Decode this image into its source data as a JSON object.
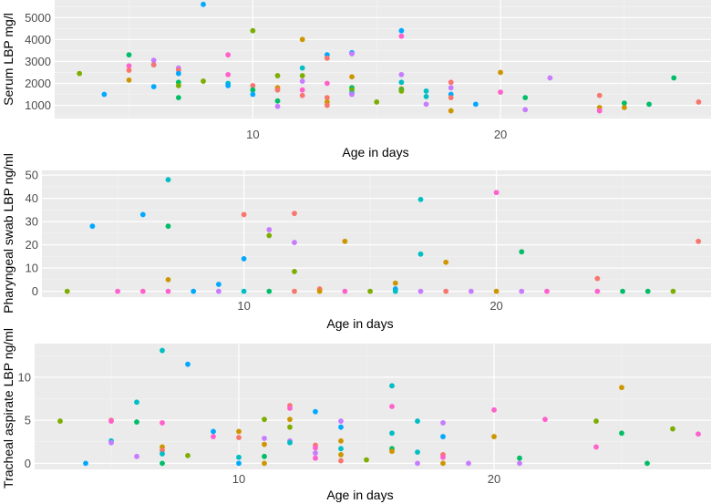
{
  "chart_data": [
    {
      "type": "scatter",
      "xlabel": "Age in days",
      "ylabel": "Serum LBP mg/l",
      "xlim": [
        2,
        28.5
      ],
      "ylim": [
        400,
        5800
      ],
      "xticks": [
        10,
        20
      ],
      "yticks": [
        1000,
        2000,
        3000,
        4000,
        5000
      ],
      "grid": true,
      "legend": "none",
      "points": [
        {
          "x": 3,
          "y": 2450,
          "c": "#7CAE00"
        },
        {
          "x": 4,
          "y": 1500,
          "c": "#00A9FF"
        },
        {
          "x": 5,
          "y": 2800,
          "c": "#FF61CC"
        },
        {
          "x": 5,
          "y": 2600,
          "c": "#F8766D"
        },
        {
          "x": 5,
          "y": 3300,
          "c": "#00BE67"
        },
        {
          "x": 5,
          "y": 2150,
          "c": "#CD9600"
        },
        {
          "x": 6,
          "y": 3050,
          "c": "#C77CFF"
        },
        {
          "x": 6,
          "y": 2850,
          "c": "#00A9FF"
        },
        {
          "x": 6,
          "y": 1850,
          "c": "#00A9FF"
        },
        {
          "x": 6,
          "y": 2850,
          "c": "#F8766D"
        },
        {
          "x": 7,
          "y": 2700,
          "c": "#C77CFF"
        },
        {
          "x": 7,
          "y": 2600,
          "c": "#F8766D"
        },
        {
          "x": 7,
          "y": 2450,
          "c": "#00A9FF"
        },
        {
          "x": 7,
          "y": 2050,
          "c": "#00BE67"
        },
        {
          "x": 7,
          "y": 1900,
          "c": "#7CAE00"
        },
        {
          "x": 7,
          "y": 1350,
          "c": "#00BE67"
        },
        {
          "x": 8,
          "y": 5600,
          "c": "#00A9FF"
        },
        {
          "x": 8,
          "y": 2100,
          "c": "#7CAE00"
        },
        {
          "x": 9,
          "y": 3300,
          "c": "#FF61CC"
        },
        {
          "x": 9,
          "y": 2400,
          "c": "#FF61CC"
        },
        {
          "x": 9,
          "y": 2000,
          "c": "#00BFC4"
        },
        {
          "x": 9,
          "y": 1900,
          "c": "#00A9FF"
        },
        {
          "x": 10,
          "y": 4400,
          "c": "#7CAE00"
        },
        {
          "x": 10,
          "y": 1900,
          "c": "#F8766D"
        },
        {
          "x": 10,
          "y": 1700,
          "c": "#00BE67"
        },
        {
          "x": 10,
          "y": 1500,
          "c": "#00A9FF"
        },
        {
          "x": 11,
          "y": 2350,
          "c": "#7CAE00"
        },
        {
          "x": 11,
          "y": 1800,
          "c": "#CD9600"
        },
        {
          "x": 11,
          "y": 1700,
          "c": "#F8766D"
        },
        {
          "x": 11,
          "y": 1200,
          "c": "#00BE67"
        },
        {
          "x": 11,
          "y": 950,
          "c": "#C77CFF"
        },
        {
          "x": 12,
          "y": 4000,
          "c": "#CD9600"
        },
        {
          "x": 12,
          "y": 2700,
          "c": "#00BFC4"
        },
        {
          "x": 12,
          "y": 2350,
          "c": "#7CAE00"
        },
        {
          "x": 12,
          "y": 2100,
          "c": "#C77CFF"
        },
        {
          "x": 12,
          "y": 1700,
          "c": "#FF61CC"
        },
        {
          "x": 12,
          "y": 1450,
          "c": "#F8766D"
        },
        {
          "x": 13,
          "y": 3300,
          "c": "#00A9FF"
        },
        {
          "x": 13,
          "y": 3150,
          "c": "#F8766D"
        },
        {
          "x": 13,
          "y": 2000,
          "c": "#FF61CC"
        },
        {
          "x": 13,
          "y": 1350,
          "c": "#F8766D"
        },
        {
          "x": 13,
          "y": 1150,
          "c": "#CD9600"
        },
        {
          "x": 13,
          "y": 1000,
          "c": "#F8766D"
        },
        {
          "x": 14,
          "y": 3400,
          "c": "#00A9FF"
        },
        {
          "x": 14,
          "y": 3350,
          "c": "#C77CFF"
        },
        {
          "x": 14,
          "y": 2300,
          "c": "#CD9600"
        },
        {
          "x": 14,
          "y": 1800,
          "c": "#00BE67"
        },
        {
          "x": 14,
          "y": 1700,
          "c": "#7CAE00"
        },
        {
          "x": 14,
          "y": 1550,
          "c": "#00BFC4"
        },
        {
          "x": 14,
          "y": 1500,
          "c": "#C77CFF"
        },
        {
          "x": 15,
          "y": 1150,
          "c": "#7CAE00"
        },
        {
          "x": 16,
          "y": 4400,
          "c": "#00A9FF"
        },
        {
          "x": 16,
          "y": 4150,
          "c": "#FF61CC"
        },
        {
          "x": 16,
          "y": 2400,
          "c": "#C77CFF"
        },
        {
          "x": 16,
          "y": 2050,
          "c": "#00BFC4"
        },
        {
          "x": 16,
          "y": 1750,
          "c": "#CD9600"
        },
        {
          "x": 16,
          "y": 1700,
          "c": "#00BE67"
        },
        {
          "x": 16,
          "y": 1650,
          "c": "#7CAE00"
        },
        {
          "x": 17,
          "y": 1650,
          "c": "#00BFC4"
        },
        {
          "x": 17,
          "y": 1400,
          "c": "#00BFC4"
        },
        {
          "x": 17,
          "y": 1050,
          "c": "#C77CFF"
        },
        {
          "x": 18,
          "y": 2050,
          "c": "#F8766D"
        },
        {
          "x": 18,
          "y": 1800,
          "c": "#C77CFF"
        },
        {
          "x": 18,
          "y": 1500,
          "c": "#00A9FF"
        },
        {
          "x": 18,
          "y": 1350,
          "c": "#F8766D"
        },
        {
          "x": 18,
          "y": 750,
          "c": "#CD9600"
        },
        {
          "x": 19,
          "y": 1050,
          "c": "#00A9FF"
        },
        {
          "x": 20,
          "y": 2500,
          "c": "#CD9600"
        },
        {
          "x": 20,
          "y": 1600,
          "c": "#FF61CC"
        },
        {
          "x": 21,
          "y": 1350,
          "c": "#00BE67"
        },
        {
          "x": 21,
          "y": 800,
          "c": "#C77CFF"
        },
        {
          "x": 22,
          "y": 2250,
          "c": "#C77CFF"
        },
        {
          "x": 24,
          "y": 1450,
          "c": "#F8766D"
        },
        {
          "x": 24,
          "y": 900,
          "c": "#CD9600"
        },
        {
          "x": 24,
          "y": 750,
          "c": "#FF61CC"
        },
        {
          "x": 25,
          "y": 1100,
          "c": "#00BE67"
        },
        {
          "x": 25,
          "y": 900,
          "c": "#CD9600"
        },
        {
          "x": 26,
          "y": 1050,
          "c": "#00BE67"
        },
        {
          "x": 27,
          "y": 2250,
          "c": "#00BE67"
        },
        {
          "x": 28,
          "y": 1150,
          "c": "#F8766D"
        }
      ]
    },
    {
      "type": "scatter",
      "xlabel": "Age in days",
      "ylabel": "Pharyngeal swab LBP ng/ml",
      "xlim": [
        2,
        28.5
      ],
      "ylim": [
        -2.5,
        52
      ],
      "xticks": [
        10,
        20
      ],
      "yticks": [
        0,
        10,
        20,
        30,
        40,
        50
      ],
      "grid": true,
      "legend": "none",
      "points": [
        {
          "x": 3,
          "y": 0,
          "c": "#7CAE00"
        },
        {
          "x": 4,
          "y": 28,
          "c": "#00A9FF"
        },
        {
          "x": 5,
          "y": 0,
          "c": "#FF61CC"
        },
        {
          "x": 6,
          "y": 33,
          "c": "#00A9FF"
        },
        {
          "x": 6,
          "y": 0,
          "c": "#FF61CC"
        },
        {
          "x": 7,
          "y": 48,
          "c": "#00BFC4"
        },
        {
          "x": 7,
          "y": 28,
          "c": "#00BE67"
        },
        {
          "x": 7,
          "y": 5,
          "c": "#CD9600"
        },
        {
          "x": 7,
          "y": 0,
          "c": "#FF61CC"
        },
        {
          "x": 8,
          "y": 0,
          "c": "#00A9FF"
        },
        {
          "x": 9,
          "y": 3,
          "c": "#00A9FF"
        },
        {
          "x": 9,
          "y": 0,
          "c": "#C77CFF"
        },
        {
          "x": 10,
          "y": 33,
          "c": "#F8766D"
        },
        {
          "x": 10,
          "y": 14,
          "c": "#00A9FF"
        },
        {
          "x": 10,
          "y": 0,
          "c": "#00BFC4"
        },
        {
          "x": 11,
          "y": 26.5,
          "c": "#C77CFF"
        },
        {
          "x": 11,
          "y": 24,
          "c": "#7CAE00"
        },
        {
          "x": 11,
          "y": 0,
          "c": "#00BE67"
        },
        {
          "x": 12,
          "y": 33.5,
          "c": "#F8766D"
        },
        {
          "x": 12,
          "y": 21,
          "c": "#C77CFF"
        },
        {
          "x": 12,
          "y": 8.5,
          "c": "#7CAE00"
        },
        {
          "x": 12,
          "y": 0,
          "c": "#F8766D"
        },
        {
          "x": 13,
          "y": 1,
          "c": "#F8766D"
        },
        {
          "x": 13,
          "y": 0,
          "c": "#CD9600"
        },
        {
          "x": 14,
          "y": 21.5,
          "c": "#CD9600"
        },
        {
          "x": 14,
          "y": 0,
          "c": "#FF61CC"
        },
        {
          "x": 15,
          "y": 0,
          "c": "#7CAE00"
        },
        {
          "x": 16,
          "y": 3.5,
          "c": "#CD9600"
        },
        {
          "x": 16,
          "y": 1,
          "c": "#00A9FF"
        },
        {
          "x": 16,
          "y": 0,
          "c": "#00BFC4"
        },
        {
          "x": 17,
          "y": 39.5,
          "c": "#00BFC4"
        },
        {
          "x": 17,
          "y": 16,
          "c": "#00BFC4"
        },
        {
          "x": 17,
          "y": 0,
          "c": "#C77CFF"
        },
        {
          "x": 18,
          "y": 12.5,
          "c": "#CD9600"
        },
        {
          "x": 18,
          "y": 0,
          "c": "#F8766D"
        },
        {
          "x": 19,
          "y": 0,
          "c": "#C77CFF"
        },
        {
          "x": 20,
          "y": 42.5,
          "c": "#FF61CC"
        },
        {
          "x": 20,
          "y": 0,
          "c": "#CD9600"
        },
        {
          "x": 21,
          "y": 17,
          "c": "#00BE67"
        },
        {
          "x": 21,
          "y": 0,
          "c": "#C77CFF"
        },
        {
          "x": 22,
          "y": 0,
          "c": "#FF61CC"
        },
        {
          "x": 24,
          "y": 5.5,
          "c": "#F8766D"
        },
        {
          "x": 24,
          "y": 0,
          "c": "#FF61CC"
        },
        {
          "x": 25,
          "y": 0,
          "c": "#00BE67"
        },
        {
          "x": 26,
          "y": 0,
          "c": "#00BE67"
        },
        {
          "x": 27,
          "y": 0,
          "c": "#7CAE00"
        },
        {
          "x": 28,
          "y": 21.5,
          "c": "#F8766D"
        }
      ]
    },
    {
      "type": "scatter",
      "xlabel": "Age in days",
      "ylabel": "Tracheal aspirate LBP ng/ml",
      "xlim": [
        2,
        28.5
      ],
      "ylim": [
        -0.7,
        13.9
      ],
      "xticks": [
        10,
        20
      ],
      "yticks": [
        0,
        5,
        10
      ],
      "grid": true,
      "legend": "none",
      "points": [
        {
          "x": 3,
          "y": 4.9,
          "c": "#7CAE00"
        },
        {
          "x": 4,
          "y": 0,
          "c": "#00A9FF"
        },
        {
          "x": 5,
          "y": 5,
          "c": "#F8766D"
        },
        {
          "x": 5,
          "y": 4.9,
          "c": "#FF61CC"
        },
        {
          "x": 5,
          "y": 2.6,
          "c": "#00BFC4"
        },
        {
          "x": 5,
          "y": 2.4,
          "c": "#C77CFF"
        },
        {
          "x": 6,
          "y": 7.1,
          "c": "#00BFC4"
        },
        {
          "x": 6,
          "y": 4.8,
          "c": "#00BE67"
        },
        {
          "x": 6,
          "y": 0.8,
          "c": "#C77CFF"
        },
        {
          "x": 7,
          "y": 13.1,
          "c": "#00BFC4"
        },
        {
          "x": 7,
          "y": 4.7,
          "c": "#FF61CC"
        },
        {
          "x": 7,
          "y": 1.9,
          "c": "#CD9600"
        },
        {
          "x": 7,
          "y": 1.5,
          "c": "#F8766D"
        },
        {
          "x": 7,
          "y": 1.1,
          "c": "#00BFC4"
        },
        {
          "x": 7,
          "y": 0,
          "c": "#00BE67"
        },
        {
          "x": 8,
          "y": 11.5,
          "c": "#00A9FF"
        },
        {
          "x": 8,
          "y": 0.9,
          "c": "#7CAE00"
        },
        {
          "x": 9,
          "y": 3.7,
          "c": "#00A9FF"
        },
        {
          "x": 9,
          "y": 3.1,
          "c": "#FF61CC"
        },
        {
          "x": 10,
          "y": 3.7,
          "c": "#CD9600"
        },
        {
          "x": 10,
          "y": 3,
          "c": "#F8766D"
        },
        {
          "x": 10,
          "y": 0.7,
          "c": "#00BFC4"
        },
        {
          "x": 10,
          "y": 0,
          "c": "#00A9FF"
        },
        {
          "x": 11,
          "y": 5.1,
          "c": "#7CAE00"
        },
        {
          "x": 11,
          "y": 2.9,
          "c": "#C77CFF"
        },
        {
          "x": 11,
          "y": 2.2,
          "c": "#CD9600"
        },
        {
          "x": 11,
          "y": 0.8,
          "c": "#00BE67"
        },
        {
          "x": 11,
          "y": 0,
          "c": "#CD9600"
        },
        {
          "x": 12,
          "y": 6.7,
          "c": "#F8766D"
        },
        {
          "x": 12,
          "y": 6.4,
          "c": "#FF61CC"
        },
        {
          "x": 12,
          "y": 5.1,
          "c": "#CD9600"
        },
        {
          "x": 12,
          "y": 4.2,
          "c": "#7CAE00"
        },
        {
          "x": 12,
          "y": 2.6,
          "c": "#C77CFF"
        },
        {
          "x": 12,
          "y": 2.4,
          "c": "#00BFC4"
        },
        {
          "x": 13,
          "y": 6,
          "c": "#00A9FF"
        },
        {
          "x": 13,
          "y": 2.1,
          "c": "#F8766D"
        },
        {
          "x": 13,
          "y": 1.8,
          "c": "#FF61CC"
        },
        {
          "x": 13,
          "y": 1.2,
          "c": "#C77CFF"
        },
        {
          "x": 13,
          "y": 0.6,
          "c": "#FF61CC"
        },
        {
          "x": 14,
          "y": 4.9,
          "c": "#C77CFF"
        },
        {
          "x": 14,
          "y": 4.2,
          "c": "#00A9FF"
        },
        {
          "x": 14,
          "y": 2.6,
          "c": "#CD9600"
        },
        {
          "x": 14,
          "y": 1.7,
          "c": "#00BFC4"
        },
        {
          "x": 14,
          "y": 1,
          "c": "#CD9600"
        },
        {
          "x": 14,
          "y": 0.3,
          "c": "#F8766D"
        },
        {
          "x": 15,
          "y": 0.4,
          "c": "#7CAE00"
        },
        {
          "x": 16,
          "y": 9,
          "c": "#00BFC4"
        },
        {
          "x": 16,
          "y": 6.6,
          "c": "#FF61CC"
        },
        {
          "x": 16,
          "y": 3.5,
          "c": "#00BFC4"
        },
        {
          "x": 16,
          "y": 1.7,
          "c": "#00BE67"
        },
        {
          "x": 16,
          "y": 1.4,
          "c": "#CD9600"
        },
        {
          "x": 17,
          "y": 4.9,
          "c": "#00BFC4"
        },
        {
          "x": 17,
          "y": 1.3,
          "c": "#00BFC4"
        },
        {
          "x": 17,
          "y": 0,
          "c": "#C77CFF"
        },
        {
          "x": 18,
          "y": 4.7,
          "c": "#C77CFF"
        },
        {
          "x": 18,
          "y": 3.1,
          "c": "#00A9FF"
        },
        {
          "x": 18,
          "y": 1,
          "c": "#F8766D"
        },
        {
          "x": 18,
          "y": 0.7,
          "c": "#FF61CC"
        },
        {
          "x": 18,
          "y": 0,
          "c": "#CD9600"
        },
        {
          "x": 19,
          "y": 0,
          "c": "#C77CFF"
        },
        {
          "x": 20,
          "y": 6.2,
          "c": "#FF61CC"
        },
        {
          "x": 20,
          "y": 3.1,
          "c": "#CD9600"
        },
        {
          "x": 21,
          "y": 0.6,
          "c": "#00BE67"
        },
        {
          "x": 21,
          "y": 0,
          "c": "#C77CFF"
        },
        {
          "x": 22,
          "y": 5.1,
          "c": "#FF61CC"
        },
        {
          "x": 24,
          "y": 4.9,
          "c": "#7CAE00"
        },
        {
          "x": 24,
          "y": 1.9,
          "c": "#FF61CC"
        },
        {
          "x": 25,
          "y": 8.8,
          "c": "#CD9600"
        },
        {
          "x": 25,
          "y": 3.5,
          "c": "#00BE67"
        },
        {
          "x": 26,
          "y": 0,
          "c": "#00BE67"
        },
        {
          "x": 27,
          "y": 4,
          "c": "#7CAE00"
        },
        {
          "x": 28,
          "y": 3.4,
          "c": "#FF61CC"
        }
      ]
    }
  ]
}
